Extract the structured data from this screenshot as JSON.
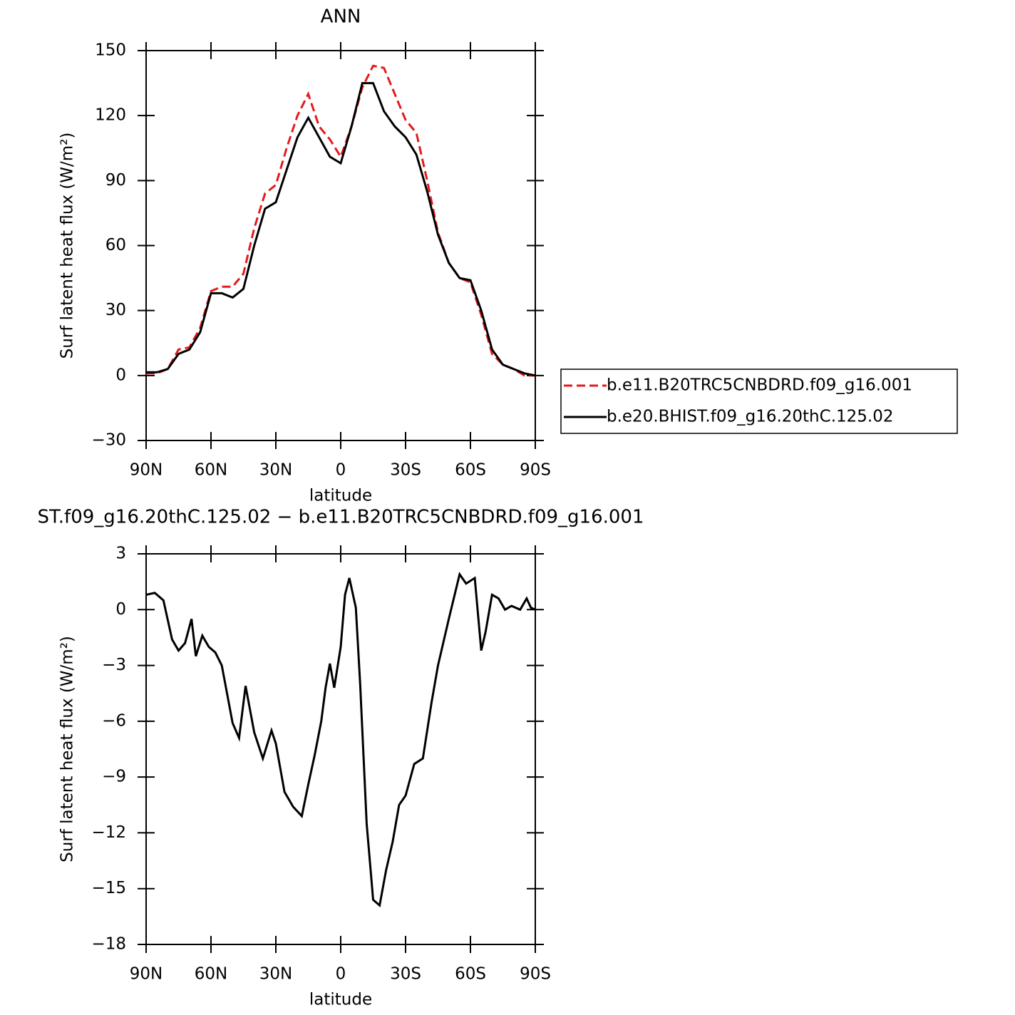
{
  "chart_data": [
    {
      "type": "line",
      "title": "ANN",
      "xlabel": "latitude",
      "ylabel": "Surf latent heat flux (W/m²)",
      "xlim": [
        90,
        -90
      ],
      "xticks": [
        {
          "value": 90,
          "label": "90N"
        },
        {
          "value": 60,
          "label": "60N"
        },
        {
          "value": 30,
          "label": "30N"
        },
        0,
        {
          "value": -30,
          "label": "30S"
        },
        {
          "value": -60,
          "label": "60S"
        },
        {
          "value": -90,
          "label": "90S"
        }
      ],
      "ylim": [
        -30,
        150
      ],
      "yticks": [
        {
          "value": -30,
          "label": "−30"
        },
        0,
        30,
        60,
        90,
        120,
        150
      ],
      "legend": "right",
      "x": [
        90,
        85,
        80,
        75,
        70,
        65,
        60,
        55,
        50,
        45,
        40,
        35,
        30,
        25,
        20,
        15,
        10,
        5,
        0,
        -5,
        -10,
        -15,
        -20,
        -25,
        -30,
        -35,
        -40,
        -45,
        -50,
        -55,
        -60,
        -65,
        -70,
        -75,
        -80,
        -85,
        -90
      ],
      "series": [
        {
          "name": "b.e11.B20TRC5CNBDRD.f09_g16.001",
          "color": "#e41a1c",
          "dash": true,
          "values": [
            1,
            1,
            3,
            12,
            13,
            22,
            39,
            41,
            41,
            47,
            68,
            84,
            88,
            105,
            120,
            130,
            115,
            109,
            101,
            115,
            133,
            143,
            142,
            130,
            118,
            112,
            90,
            66,
            52,
            45,
            43,
            28,
            10,
            5,
            3,
            0,
            0
          ]
        },
        {
          "name": "b.e20.BHIST.f09_g16.20thC.125.02",
          "color": "#000000",
          "dash": false,
          "values": [
            1.5,
            1.5,
            3,
            10,
            12,
            20,
            38,
            38,
            36,
            40,
            60,
            77,
            80,
            95,
            110,
            119,
            110,
            101,
            98,
            115,
            135,
            135,
            122,
            115,
            110,
            102,
            85,
            65,
            52,
            45,
            44,
            30,
            12,
            5,
            3,
            1,
            0
          ]
        }
      ]
    },
    {
      "type": "line",
      "title": "ST.f09_g16.20thC.125.02 − b.e11.B20TRC5CNBDRD.f09_g16.001",
      "xlabel": "latitude",
      "ylabel": "Surf latent heat flux (W/m²)",
      "xlim": [
        90,
        -90
      ],
      "xticks": [
        {
          "value": 90,
          "label": "90N"
        },
        {
          "value": 60,
          "label": "60N"
        },
        {
          "value": 30,
          "label": "30N"
        },
        0,
        {
          "value": -30,
          "label": "30S"
        },
        {
          "value": -60,
          "label": "60S"
        },
        {
          "value": -90,
          "label": "90S"
        }
      ],
      "ylim": [
        -18,
        3
      ],
      "yticks": [
        {
          "value": -18,
          "label": "−18"
        },
        {
          "value": -15,
          "label": "−15"
        },
        {
          "value": -12,
          "label": "−12"
        },
        {
          "value": -9,
          "label": "−9"
        },
        {
          "value": -6,
          "label": "−6"
        },
        {
          "value": -3,
          "label": "−3"
        },
        0,
        3
      ],
      "x": [
        90,
        86,
        82,
        78,
        75,
        72,
        69,
        67,
        64,
        61,
        58,
        55,
        50,
        47,
        44,
        40,
        36,
        32,
        30,
        26,
        22,
        18,
        15,
        12,
        9,
        7,
        5,
        3,
        0,
        -2,
        -4,
        -7,
        -9,
        -12,
        -15,
        -18,
        -21,
        -24,
        -27,
        -30,
        -34,
        -38,
        -42,
        -45,
        -50,
        -55,
        -58,
        -62,
        -65,
        -67,
        -70,
        -73,
        -76,
        -79,
        -83,
        -86,
        -88,
        -90
      ],
      "series": [
        {
          "color": "#000000",
          "values": [
            0.8,
            0.9,
            0.5,
            -1.6,
            -2.2,
            -1.8,
            -0.5,
            -2.5,
            -1.4,
            -2.0,
            -2.3,
            -3.0,
            -6.1,
            -6.9,
            -4.1,
            -6.6,
            -8.0,
            -6.5,
            -7.2,
            -9.8,
            -10.6,
            -11.1,
            -9.4,
            -7.8,
            -6.0,
            -4.2,
            -2.9,
            -4.2,
            -2.0,
            0.8,
            1.7,
            0.1,
            -4.0,
            -11.5,
            -15.6,
            -15.9,
            -14.0,
            -12.5,
            -10.5,
            -10.0,
            -8.3,
            -8.0,
            -5.0,
            -3.0,
            -0.5,
            1.9,
            1.4,
            1.7,
            -2.2,
            -1.2,
            0.8,
            0.6,
            0.0,
            0.2,
            0.0,
            0.6,
            0.1,
            0.0
          ]
        }
      ]
    }
  ]
}
